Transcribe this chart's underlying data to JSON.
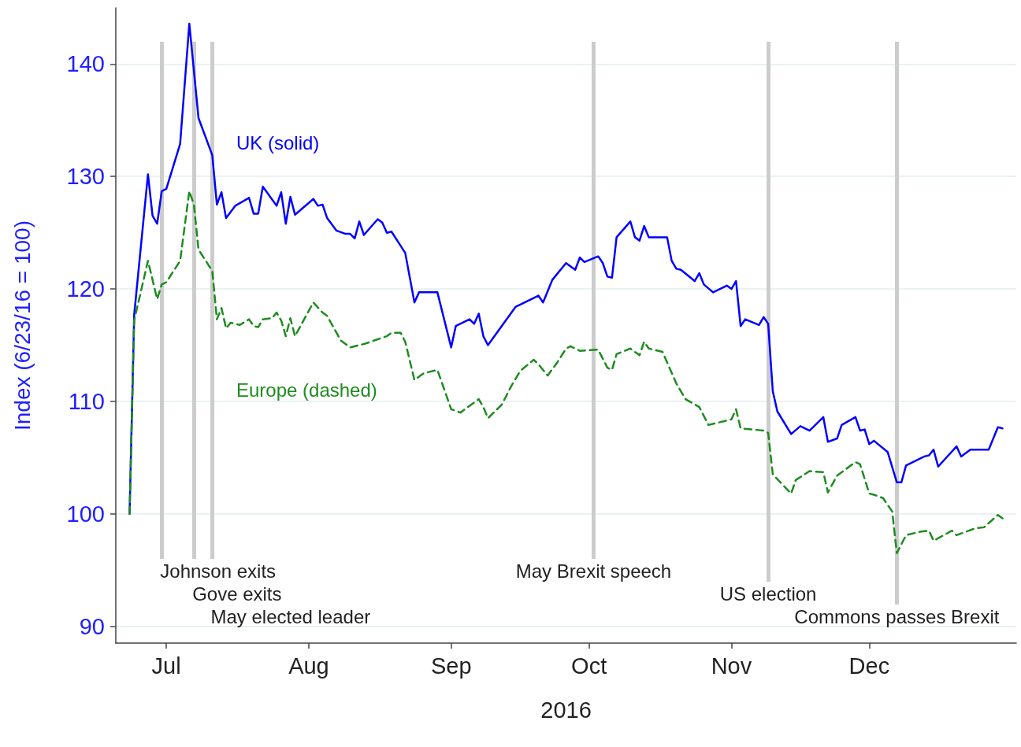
{
  "chart_data": {
    "type": "line",
    "xlabel": "2016",
    "ylabel": "Index (6/23/16 = 100)",
    "xlim": [
      "2016-06-20",
      "2017-01-02"
    ],
    "xticks": [
      {
        "value": "2016-07-01",
        "label": "Jul"
      },
      {
        "value": "2016-08-01",
        "label": "Aug"
      },
      {
        "value": "2016-09-01",
        "label": "Sep"
      },
      {
        "value": "2016-10-01",
        "label": "Oct"
      },
      {
        "value": "2016-11-01",
        "label": "Nov"
      },
      {
        "value": "2016-12-01",
        "label": "Dec"
      }
    ],
    "ylim": [
      88.5,
      145
    ],
    "yticks": [
      90,
      100,
      110,
      120,
      130,
      140
    ],
    "grid": "y",
    "legend": false,
    "marker": "none",
    "series": [
      {
        "name": "UK (solid)",
        "color": "#0000ff",
        "line_style": "solid",
        "x": [
          "2016-06-23",
          "2016-06-24",
          "2016-06-27",
          "2016-06-28",
          "2016-06-29",
          "2016-06-30",
          "2016-07-01",
          "2016-07-04",
          "2016-07-06",
          "2016-07-08",
          "2016-07-11",
          "2016-07-12",
          "2016-07-13",
          "2016-07-14",
          "2016-07-16",
          "2016-07-19",
          "2016-07-20",
          "2016-07-21",
          "2016-07-22",
          "2016-07-25",
          "2016-07-26",
          "2016-07-27",
          "2016-07-28",
          "2016-07-29",
          "2016-08-02",
          "2016-08-03",
          "2016-08-04",
          "2016-08-05",
          "2016-08-07",
          "2016-08-09",
          "2016-08-10",
          "2016-08-11",
          "2016-08-12",
          "2016-08-13",
          "2016-08-16",
          "2016-08-17",
          "2016-08-18",
          "2016-08-19",
          "2016-08-22",
          "2016-08-24",
          "2016-08-25",
          "2016-08-29",
          "2016-09-01",
          "2016-09-02",
          "2016-09-05",
          "2016-09-06",
          "2016-09-07",
          "2016-09-08",
          "2016-09-09",
          "2016-09-15",
          "2016-09-20",
          "2016-09-21",
          "2016-09-23",
          "2016-09-26",
          "2016-09-28",
          "2016-09-29",
          "2016-09-30",
          "2016-10-03",
          "2016-10-04",
          "2016-10-05",
          "2016-10-06",
          "2016-10-07",
          "2016-10-10",
          "2016-10-11",
          "2016-10-12",
          "2016-10-13",
          "2016-10-14",
          "2016-10-18",
          "2016-10-19",
          "2016-10-20",
          "2016-10-21",
          "2016-10-24",
          "2016-10-25",
          "2016-10-26",
          "2016-10-28",
          "2016-10-31",
          "2016-11-01",
          "2016-11-02",
          "2016-11-03",
          "2016-11-04",
          "2016-11-07",
          "2016-11-08",
          "2016-11-09",
          "2016-11-10",
          "2016-11-11",
          "2016-11-14",
          "2016-11-16",
          "2016-11-18",
          "2016-11-21",
          "2016-11-22",
          "2016-11-24",
          "2016-11-25",
          "2016-11-28",
          "2016-11-29",
          "2016-11-30",
          "2016-12-01",
          "2016-12-02",
          "2016-12-05",
          "2016-12-07",
          "2016-12-08",
          "2016-12-09",
          "2016-12-13",
          "2016-12-14",
          "2016-12-15",
          "2016-12-16",
          "2016-12-20",
          "2016-12-21",
          "2016-12-23",
          "2016-12-27",
          "2016-12-29",
          "2016-12-30"
        ],
        "values": [
          100.0,
          117.7,
          130.2,
          126.5,
          125.8,
          128.7,
          128.9,
          132.9,
          143.6,
          135.2,
          131.9,
          127.5,
          128.6,
          126.3,
          127.4,
          128.1,
          126.7,
          126.7,
          129.1,
          127.4,
          128.6,
          125.8,
          128.2,
          126.6,
          128.0,
          127.4,
          127.5,
          126.3,
          125.2,
          124.9,
          124.9,
          124.5,
          126.0,
          124.8,
          126.2,
          125.9,
          125.0,
          125.1,
          123.2,
          118.8,
          119.7,
          119.7,
          114.8,
          116.7,
          117.3,
          116.9,
          117.8,
          115.8,
          115.0,
          118.4,
          119.4,
          118.8,
          120.8,
          122.3,
          121.7,
          122.8,
          122.4,
          122.9,
          122.3,
          121.1,
          121.0,
          124.6,
          126.0,
          124.6,
          124.3,
          125.6,
          124.6,
          124.6,
          122.5,
          121.8,
          121.7,
          120.7,
          121.4,
          120.4,
          119.7,
          120.3,
          120.0,
          120.7,
          116.7,
          117.3,
          116.8,
          117.5,
          116.9,
          110.9,
          109.1,
          107.1,
          107.8,
          107.4,
          108.6,
          106.4,
          106.7,
          107.9,
          108.6,
          107.4,
          107.5,
          106.2,
          106.5,
          105.5,
          102.8,
          102.8,
          104.3,
          105.1,
          105.2,
          105.7,
          104.2,
          106.0,
          105.1,
          105.7,
          105.7,
          107.7,
          107.6
        ]
      },
      {
        "name": "Europe (dashed)",
        "color": "#1e8c1e",
        "line_style": "dashed",
        "x": [
          "2016-06-23",
          "2016-06-24",
          "2016-06-27",
          "2016-06-29",
          "2016-06-30",
          "2016-07-01",
          "2016-07-04",
          "2016-07-06",
          "2016-07-07",
          "2016-07-08",
          "2016-07-11",
          "2016-07-12",
          "2016-07-13",
          "2016-07-14",
          "2016-07-15",
          "2016-07-17",
          "2016-07-19",
          "2016-07-20",
          "2016-07-21",
          "2016-07-22",
          "2016-07-24",
          "2016-07-25",
          "2016-07-26",
          "2016-07-27",
          "2016-07-28",
          "2016-07-29",
          "2016-08-02",
          "2016-08-04",
          "2016-08-05",
          "2016-08-08",
          "2016-08-10",
          "2016-08-13",
          "2016-08-18",
          "2016-08-19",
          "2016-08-21",
          "2016-08-22",
          "2016-08-24",
          "2016-08-26",
          "2016-08-29",
          "2016-09-01",
          "2016-09-03",
          "2016-09-06",
          "2016-09-07",
          "2016-09-08",
          "2016-09-09",
          "2016-09-12",
          "2016-09-14",
          "2016-09-16",
          "2016-09-19",
          "2016-09-20",
          "2016-09-22",
          "2016-09-24",
          "2016-09-26",
          "2016-09-27",
          "2016-09-29",
          "2016-10-03",
          "2016-10-05",
          "2016-10-06",
          "2016-10-07",
          "2016-10-10",
          "2016-10-12",
          "2016-10-13",
          "2016-10-14",
          "2016-10-17",
          "2016-10-20",
          "2016-10-22",
          "2016-10-25",
          "2016-10-27",
          "2016-11-01",
          "2016-11-02",
          "2016-11-03",
          "2016-11-08",
          "2016-11-09",
          "2016-11-10",
          "2016-11-14",
          "2016-11-15",
          "2016-11-18",
          "2016-11-21",
          "2016-11-22",
          "2016-11-24",
          "2016-11-28",
          "2016-11-29",
          "2016-12-01",
          "2016-12-02",
          "2016-12-04",
          "2016-12-06",
          "2016-12-07",
          "2016-12-09",
          "2016-12-12",
          "2016-12-14",
          "2016-12-15",
          "2016-12-19",
          "2016-12-20",
          "2016-12-24",
          "2016-12-26",
          "2016-12-29",
          "2016-12-30"
        ],
        "values": [
          100.0,
          117.2,
          122.5,
          119.1,
          120.4,
          120.6,
          122.5,
          128.7,
          127.5,
          123.5,
          121.6,
          117.3,
          118.3,
          116.5,
          117.0,
          116.8,
          117.3,
          116.7,
          116.6,
          117.3,
          117.4,
          117.9,
          117.2,
          115.8,
          117.4,
          115.8,
          118.8,
          117.9,
          117.6,
          115.4,
          114.8,
          115.1,
          115.8,
          116.1,
          116.1,
          115.3,
          111.9,
          112.5,
          112.8,
          109.3,
          109.0,
          109.9,
          110.2,
          109.5,
          108.5,
          109.7,
          111.3,
          112.7,
          113.7,
          113.3,
          112.3,
          113.4,
          114.7,
          114.9,
          114.5,
          114.6,
          113.0,
          112.8,
          114.2,
          114.7,
          114.1,
          115.3,
          114.7,
          114.4,
          111.6,
          110.2,
          109.5,
          107.9,
          108.4,
          109.3,
          107.6,
          107.4,
          107.2,
          103.5,
          101.8,
          103.0,
          103.8,
          103.7,
          101.9,
          103.4,
          104.6,
          104.4,
          101.8,
          101.7,
          101.4,
          100.2,
          96.5,
          98.1,
          98.4,
          98.5,
          97.6,
          98.5,
          98.1,
          98.7,
          98.8,
          99.9,
          99.6
        ]
      }
    ],
    "ref_lines": [
      {
        "axis": "x",
        "value": "2016-06-30",
        "label": "Johnson exits",
        "color": "#cccccc"
      },
      {
        "axis": "x",
        "value": "2016-07-07",
        "label": "Gove exits",
        "color": "#cccccc"
      },
      {
        "axis": "x",
        "value": "2016-07-11",
        "label": "May elected leader",
        "color": "#cccccc"
      },
      {
        "axis": "x",
        "value": "2016-10-02",
        "label": "May Brexit speech",
        "color": "#cccccc"
      },
      {
        "axis": "x",
        "value": "2016-11-09",
        "label": "US election",
        "color": "#cccccc"
      },
      {
        "axis": "x",
        "value": "2016-12-07",
        "label": "Commons passes Brexit",
        "color": "#cccccc"
      }
    ]
  }
}
